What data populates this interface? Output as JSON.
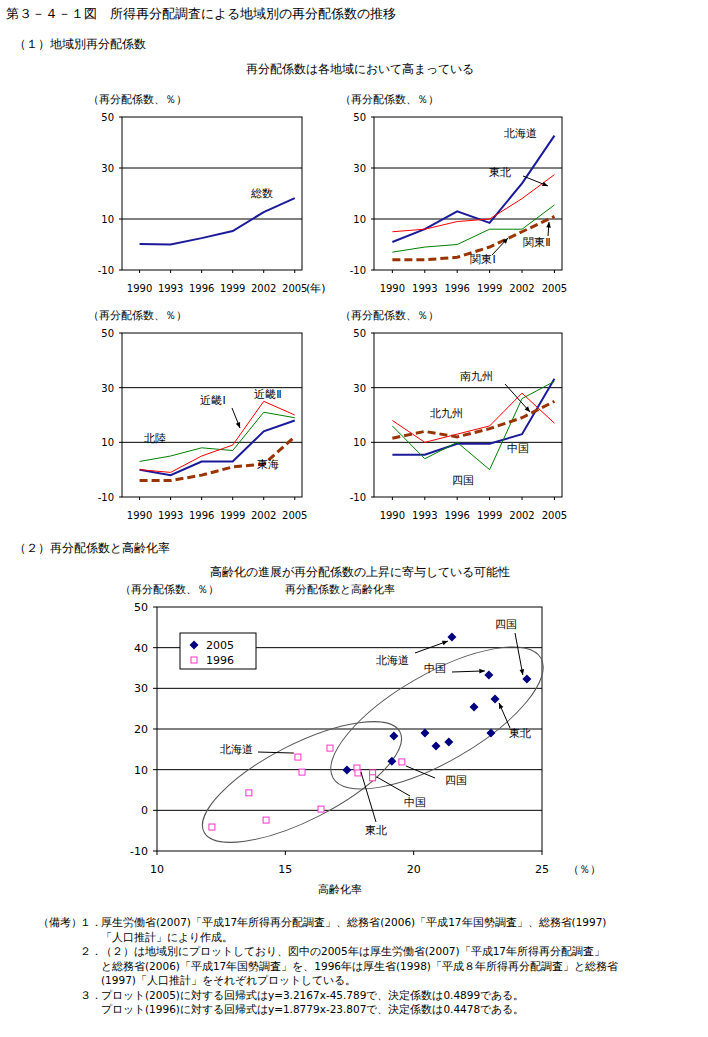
{
  "header": {
    "title": "第３－４－１図　所得再分配調査による地域別の再分配係数の推移",
    "section1": "（１）地域別再分配係数",
    "section1_subtitle": "再分配係数は各地域において高まっている",
    "section2": "（２）再分配係数と高齢化率",
    "section2_subtitle": "高齢化の進展が再分配係数の上昇に寄与している可能性"
  },
  "chart_data": [
    {
      "type": "line",
      "y_label": "（再分配係数、％）",
      "x_label": "(年)",
      "x": [
        1990,
        1993,
        1996,
        1999,
        2002,
        2005
      ],
      "xlim": [
        1988.3,
        2005.7
      ],
      "xticks": [
        1990,
        1993,
        1996,
        1999,
        2002,
        2005
      ],
      "ylim": [
        -10,
        50
      ],
      "yticks": [
        -10,
        10,
        30,
        50
      ],
      "grid": true,
      "series": [
        {
          "name": "総数",
          "color": "#1a1a9a",
          "line_style": "solid",
          "values": [
            0.2,
            0,
            2.5,
            5.3,
            12.7,
            18.2
          ]
        }
      ]
    },
    {
      "type": "line",
      "y_label": "（再分配係数、％）",
      "x": [
        1990,
        1993,
        1996,
        1999,
        2002,
        2005
      ],
      "xlim": [
        1988.3,
        2005.7
      ],
      "xticks": [
        1990,
        1993,
        1996,
        1999,
        2002,
        2005
      ],
      "ylim": [
        -10,
        50
      ],
      "yticks": [
        -10,
        10,
        30,
        50
      ],
      "grid": true,
      "series": [
        {
          "name": "北海道",
          "color": "#1a1a9a",
          "line_style": "solid",
          "values": [
            1,
            6,
            13,
            8.5,
            24,
            42.7
          ]
        },
        {
          "name": "東北",
          "color": "#ff0000",
          "line_style": "solid",
          "values": [
            5,
            6,
            9,
            10,
            18,
            27.4
          ]
        },
        {
          "name": "関東Ⅰ",
          "color": "#993300",
          "line_style": "dashed",
          "values": [
            -6,
            -6,
            -5,
            -1,
            5,
            11
          ]
        },
        {
          "name": "関東Ⅱ",
          "color": "#008000",
          "line_style": "solid",
          "values": [
            -3,
            -1,
            0,
            6,
            6,
            15.5
          ]
        }
      ]
    },
    {
      "type": "line",
      "y_label": "（再分配係数、％）",
      "x": [
        1990,
        1993,
        1996,
        1999,
        2002,
        2005
      ],
      "xlim": [
        1988.3,
        2005.7
      ],
      "xticks": [
        1990,
        1993,
        1996,
        1999,
        2002,
        2005
      ],
      "ylim": [
        -10,
        50
      ],
      "yticks": [
        -10,
        10,
        30,
        50
      ],
      "grid": true,
      "series": [
        {
          "name": "北陸",
          "color": "#008000",
          "line_style": "solid",
          "values": [
            3,
            5,
            8,
            7,
            21,
            19
          ]
        },
        {
          "name": "東海",
          "color": "#993300",
          "line_style": "dashed",
          "values": [
            -4,
            -4,
            -2,
            1,
            2,
            12
          ]
        },
        {
          "name": "近畿Ⅰ",
          "color": "#1a1a9a",
          "line_style": "solid",
          "values": [
            0,
            -2,
            3,
            3,
            14,
            18
          ]
        },
        {
          "name": "近畿Ⅱ",
          "color": "#ff0000",
          "line_style": "solid",
          "values": [
            0,
            -1,
            5,
            9,
            25,
            20
          ]
        }
      ]
    },
    {
      "type": "line",
      "y_label": "（再分配係数、％）",
      "x": [
        1990,
        1993,
        1996,
        1999,
        2002,
        2005
      ],
      "xlim": [
        1988.3,
        2005.7
      ],
      "xticks": [
        1990,
        1993,
        1996,
        1999,
        2002,
        2005
      ],
      "ylim": [
        -10,
        50
      ],
      "yticks": [
        -10,
        10,
        30,
        50
      ],
      "grid": true,
      "series": [
        {
          "name": "中国",
          "color": "#1a1a9a",
          "line_style": "solid",
          "values": [
            5.5,
            5.5,
            9.5,
            9.5,
            13,
            33.3
          ]
        },
        {
          "name": "四国",
          "color": "#008000",
          "line_style": "solid",
          "values": [
            16,
            4,
            10,
            0,
            26,
            32.3
          ]
        },
        {
          "name": "北九州",
          "color": "#ff0000",
          "line_style": "solid",
          "values": [
            18,
            10,
            13,
            16,
            28,
            17
          ]
        },
        {
          "name": "南九州",
          "color": "#993300",
          "line_style": "dashed",
          "values": [
            11.5,
            14,
            12,
            15,
            19,
            25
          ]
        }
      ]
    },
    {
      "type": "scatter",
      "title": "再分配係数と高齢化率",
      "y_label": "（再分配係数、％）",
      "x_label": "高齢化率",
      "x_unit": "（％）",
      "xlim": [
        10,
        25
      ],
      "xticks": [
        10,
        15,
        20,
        25
      ],
      "ylim": [
        -10,
        50
      ],
      "yticks": [
        -10,
        0,
        10,
        20,
        30,
        40,
        50
      ],
      "grid": true,
      "legend": "upper-left",
      "series": [
        {
          "name": "2005",
          "color": "#000080",
          "marker": "diamond",
          "x": [
            24.41,
            21.49,
            22.93,
            23.17,
            22.35,
            23.01,
            20.44,
            21.37,
            20.87,
            19.23,
            19.15,
            17.4
          ],
          "values": [
            32.3,
            42.6,
            33.3,
            27.4,
            25.4,
            19.0,
            19.0,
            16.8,
            15.8,
            18.3,
            12.1,
            9.9
          ],
          "point_labels": [
            "四国",
            "北海道",
            "中国",
            "東北",
            null,
            null,
            null,
            null,
            null,
            null,
            null,
            null
          ]
        },
        {
          "name": "1996",
          "color": "#ff33cc",
          "marker": "square",
          "x": [
            15.49,
            16.74,
            15.65,
            13.58,
            14.25,
            12.14,
            16.39,
            17.79,
            17.83,
            18.4,
            18.4,
            19.54
          ],
          "values": [
            13.1,
            15.3,
            9.4,
            4.3,
            -2.4,
            -4.1,
            0.3,
            10.4,
            9.2,
            9.2,
            8.0,
            11.9
          ],
          "point_labels": [
            "北海道",
            null,
            null,
            null,
            null,
            null,
            null,
            "東北",
            null,
            "中国",
            null,
            "四国"
          ]
        }
      ]
    }
  ],
  "notes_label": "（備考）",
  "notes": [
    {
      "number": "１．",
      "lines": [
        "厚生労働省(2007)「平成17年所得再分配調査」、総務省(2006)「平成17年国勢調査」、総務省(1997)",
        "「人口推計」により作成。"
      ]
    },
    {
      "number": "２．",
      "lines": [
        "（２）は地域別にプロットしており、図中の2005年は厚生労働省(2007)「平成17年所得再分配調査」",
        "と総務省(2006)「平成17年国勢調査」を、1996年は厚生省(1998)「平成８年所得再分配調査」と総務省",
        "(1997)「人口推計」をそれぞれプロットしている。"
      ]
    },
    {
      "number": "３．",
      "lines": [
        "プロット(2005)に対する回帰式はy=3.2167x-45.789で、決定係数は0.4899である。",
        "プロット(1996)に対する回帰式はy=1.8779x-23.807で、決定係数は0.4478である。"
      ]
    }
  ]
}
